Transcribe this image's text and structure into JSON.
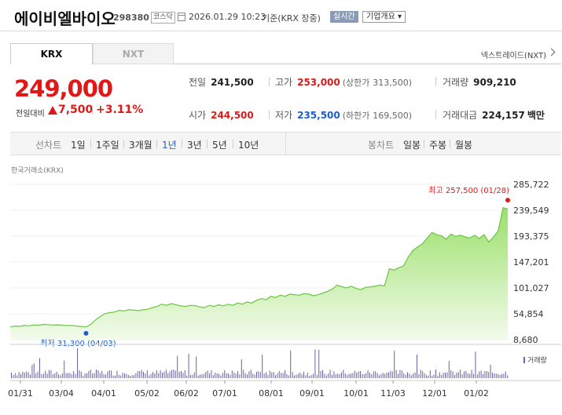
{
  "header": {
    "stock_name": "에이비엘바이오",
    "stock_code": "298380",
    "market": "코스닥",
    "datetime": "2026.01.29 10:23",
    "basis": "기준(KRX 장중)",
    "realtime_label": "실시간",
    "company_info_label": "기업개요"
  },
  "tabs": {
    "krx": "KRX",
    "nxt": "NXT",
    "nextrade": "넥스트레이드(NXT)"
  },
  "quote": {
    "price": "249,000",
    "change_label": "전일대비",
    "change_value": "7,500",
    "change_pct": "+3.11%"
  },
  "stats": {
    "prev_close_label": "전일",
    "prev_close": "241,500",
    "high_label": "고가",
    "high": "253,000",
    "upper_limit_label": "(상한가",
    "upper_limit": "313,500)",
    "volume_label": "거래량",
    "volume": "909,210",
    "open_label": "시가",
    "open": "244,500",
    "low_label": "저가",
    "low": "235,500",
    "lower_limit_label": "(하한가",
    "lower_limit": "169,500)",
    "amount_label": "거래대금",
    "amount": "224,157",
    "amount_unit": "백만"
  },
  "toolbar": {
    "line_label": "선차트",
    "ranges": [
      "1일",
      "1주일",
      "3개월",
      "1년",
      "3년",
      "5년",
      "10년"
    ],
    "active_range": "1년",
    "candle_label": "봉차트",
    "candles": [
      "일봉",
      "주봉",
      "월봉"
    ]
  },
  "chart_source": "한국거래소(KRX)",
  "chart_data": {
    "type": "area",
    "yticks": [
      285722,
      239549,
      193375,
      147201,
      101027,
      54854,
      8680
    ],
    "ylim": [
      8680,
      285722
    ],
    "xticks": [
      "01/31",
      "03/04",
      "04/01",
      "05/02",
      "06/02",
      "07/01",
      "08/01",
      "09/01",
      "10/01",
      "11/03",
      "12/01",
      "01/02"
    ],
    "high_annotation": "최고 257,500 (01/28)",
    "low_annotation": "최저 31,300 (04/03)",
    "volume_legend": "거래량",
    "series": [
      {
        "values": [
          31500,
          33000,
          32500,
          34000,
          33500,
          35000,
          34500,
          36000,
          35500,
          34800,
          35200,
          34500,
          33800,
          34200,
          33000,
          32500,
          31300,
          36000,
          44000,
          50000,
          55000,
          57000,
          58000,
          61000,
          60000,
          62000,
          61500,
          60500,
          62000,
          63000,
          66000,
          68000,
          72000,
          70000,
          73000,
          71000,
          69000,
          68000,
          70000,
          69500,
          67000,
          66000,
          70000,
          68000,
          71000,
          69000,
          72000,
          70000,
          74000,
          72000,
          76000,
          74000,
          79000,
          82000,
          80000,
          86000,
          84000,
          88000,
          86000,
          90000,
          89000,
          88000,
          91000,
          90000,
          87000,
          89000,
          92000,
          95000,
          99000,
          106000,
          103000,
          101000,
          104000,
          100000,
          98000,
          102000,
          103000,
          104000,
          106000,
          105000,
          135000,
          133000,
          137000,
          140000,
          156000,
          168000,
          174000,
          180000,
          190000,
          200000,
          196000,
          194000,
          188000,
          197000,
          193000,
          195000,
          192000,
          190000,
          195000,
          189000,
          196000,
          183000,
          192000,
          203000,
          244000,
          241500
        ]
      }
    ]
  }
}
